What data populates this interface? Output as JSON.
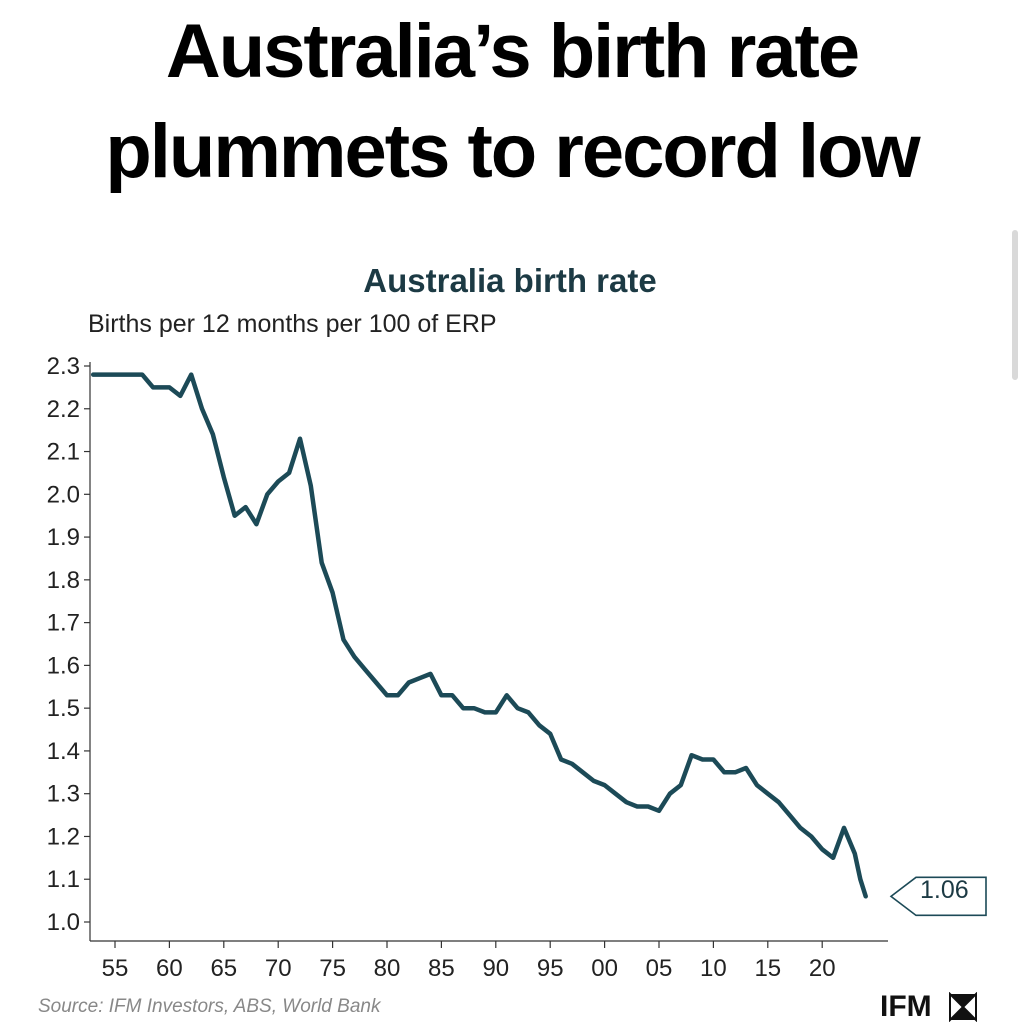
{
  "headline": {
    "line1": "Australia’s birth rate",
    "line2": "plummets to record low"
  },
  "chart_data": {
    "type": "line",
    "title": "Australia birth rate",
    "ylabel": "Births per 12 months per 100 of ERP",
    "xlabel": "",
    "ylim": [
      1.0,
      2.3
    ],
    "xlim": [
      1953,
      2024
    ],
    "yticks": [
      1.0,
      1.1,
      1.2,
      1.3,
      1.4,
      1.5,
      1.6,
      1.7,
      1.8,
      1.9,
      2.0,
      2.1,
      2.2,
      2.3
    ],
    "xticks": [
      {
        "year": 1955,
        "label": "55"
      },
      {
        "year": 1960,
        "label": "60"
      },
      {
        "year": 1965,
        "label": "65"
      },
      {
        "year": 1970,
        "label": "70"
      },
      {
        "year": 1975,
        "label": "75"
      },
      {
        "year": 1980,
        "label": "80"
      },
      {
        "year": 1985,
        "label": "85"
      },
      {
        "year": 1990,
        "label": "90"
      },
      {
        "year": 1995,
        "label": "95"
      },
      {
        "year": 2000,
        "label": "00"
      },
      {
        "year": 2005,
        "label": "05"
      },
      {
        "year": 2010,
        "label": "10"
      },
      {
        "year": 2015,
        "label": "15"
      },
      {
        "year": 2020,
        "label": "20"
      }
    ],
    "grid": false,
    "color": "#1c4a57",
    "series": [
      {
        "name": "",
        "points": [
          [
            1953.0,
            2.28
          ],
          [
            1955.0,
            2.28
          ],
          [
            1957.5,
            2.28
          ],
          [
            1958.5,
            2.25
          ],
          [
            1960.0,
            2.25
          ],
          [
            1961.0,
            2.23
          ],
          [
            1962.0,
            2.28
          ],
          [
            1963.0,
            2.2
          ],
          [
            1964.0,
            2.14
          ],
          [
            1965.0,
            2.04
          ],
          [
            1966.0,
            1.95
          ],
          [
            1967.0,
            1.97
          ],
          [
            1968.0,
            1.93
          ],
          [
            1969.0,
            2.0
          ],
          [
            1970.0,
            2.03
          ],
          [
            1971.0,
            2.05
          ],
          [
            1972.0,
            2.13
          ],
          [
            1973.0,
            2.02
          ],
          [
            1974.0,
            1.84
          ],
          [
            1975.0,
            1.77
          ],
          [
            1976.0,
            1.66
          ],
          [
            1977.0,
            1.62
          ],
          [
            1978.0,
            1.59
          ],
          [
            1979.0,
            1.56
          ],
          [
            1980.0,
            1.53
          ],
          [
            1981.0,
            1.53
          ],
          [
            1982.0,
            1.56
          ],
          [
            1983.0,
            1.57
          ],
          [
            1984.0,
            1.58
          ],
          [
            1985.0,
            1.53
          ],
          [
            1986.0,
            1.53
          ],
          [
            1987.0,
            1.5
          ],
          [
            1988.0,
            1.5
          ],
          [
            1989.0,
            1.49
          ],
          [
            1990.0,
            1.49
          ],
          [
            1991.0,
            1.53
          ],
          [
            1992.0,
            1.5
          ],
          [
            1993.0,
            1.49
          ],
          [
            1994.0,
            1.46
          ],
          [
            1995.0,
            1.44
          ],
          [
            1996.0,
            1.38
          ],
          [
            1997.0,
            1.37
          ],
          [
            1998.0,
            1.35
          ],
          [
            1999.0,
            1.33
          ],
          [
            2000.0,
            1.32
          ],
          [
            2001.0,
            1.3
          ],
          [
            2002.0,
            1.28
          ],
          [
            2003.0,
            1.27
          ],
          [
            2004.0,
            1.27
          ],
          [
            2005.0,
            1.26
          ],
          [
            2006.0,
            1.3
          ],
          [
            2007.0,
            1.32
          ],
          [
            2008.0,
            1.39
          ],
          [
            2009.0,
            1.38
          ],
          [
            2010.0,
            1.38
          ],
          [
            2011.0,
            1.35
          ],
          [
            2012.0,
            1.35
          ],
          [
            2013.0,
            1.36
          ],
          [
            2014.0,
            1.32
          ],
          [
            2015.0,
            1.3
          ],
          [
            2016.0,
            1.28
          ],
          [
            2017.0,
            1.25
          ],
          [
            2018.0,
            1.22
          ],
          [
            2019.0,
            1.2
          ],
          [
            2020.0,
            1.17
          ],
          [
            2021.0,
            1.15
          ],
          [
            2022.0,
            1.22
          ],
          [
            2023.0,
            1.16
          ],
          [
            2023.5,
            1.1
          ],
          [
            2024.0,
            1.06
          ]
        ]
      }
    ],
    "latest_label": "1.06",
    "source": "Source: IFM Investors, ABS, World Bank",
    "brand": "IFM"
  }
}
